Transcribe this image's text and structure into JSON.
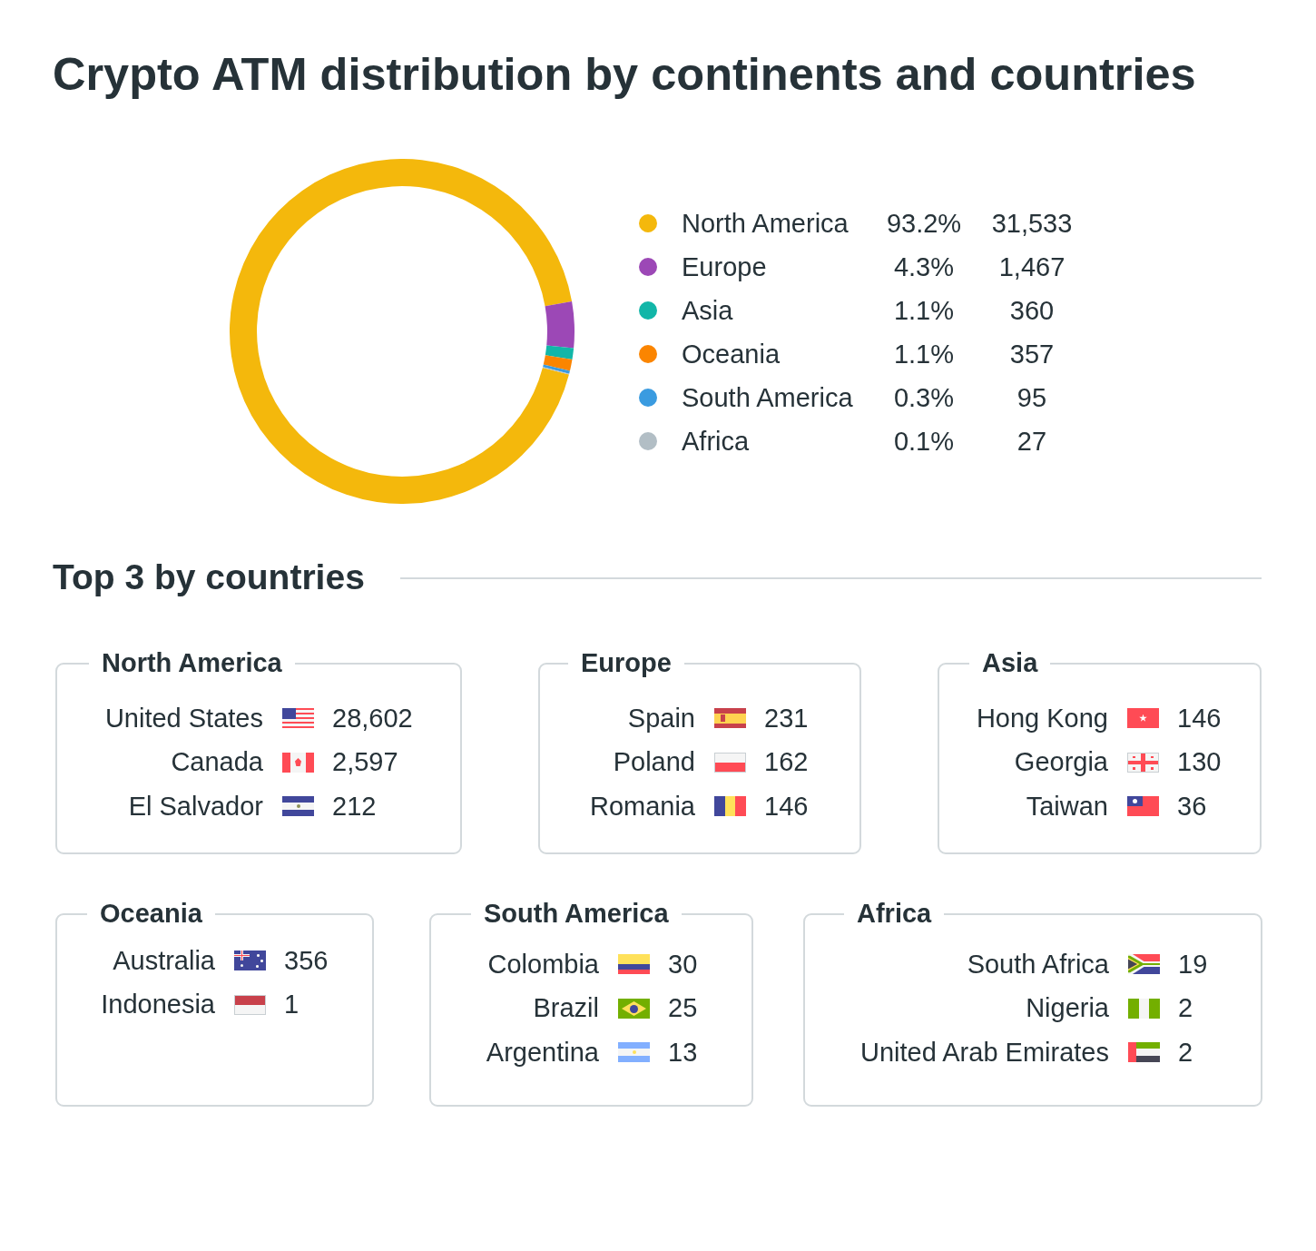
{
  "chart_data": [
    {
      "type": "donut",
      "title": "Crypto ATM distribution by continents and countries",
      "categories": [
        "North America",
        "Europe",
        "Asia",
        "Oceania",
        "South America",
        "Africa"
      ],
      "values": [
        31533,
        1467,
        360,
        357,
        95,
        27
      ],
      "colors": [
        "#f4b80c",
        "#9c48b6",
        "#12b6a8",
        "#fb8500",
        "#3a9be0",
        "#b2bec5"
      ],
      "value_labels": [
        "31,533",
        "1,467",
        "360",
        "357",
        "95",
        "27"
      ],
      "annotations": [
        "93.2%",
        "4.3%",
        "1.1%",
        "1.1%",
        "0.3%",
        "0.1%"
      ],
      "legend": "right"
    },
    {
      "type": "other",
      "title": "Top 3 by countries"
    },
    {
      "type": "other",
      "title": "North America",
      "categories": [
        "United States",
        "Canada",
        "El Salvador"
      ],
      "value_labels": [
        "28,602",
        "2,597",
        "212"
      ]
    },
    {
      "type": "other",
      "title": "Europe",
      "categories": [
        "Spain",
        "Poland",
        "Romania"
      ],
      "value_labels": [
        "231",
        "162",
        "146"
      ]
    },
    {
      "type": "other",
      "title": "Asia",
      "categories": [
        "Hong Kong",
        "Georgia",
        "Taiwan"
      ],
      "value_labels": [
        "146",
        "130",
        "36"
      ]
    },
    {
      "type": "other",
      "title": "Oceania",
      "categories": [
        "Australia",
        "Indonesia"
      ],
      "value_labels": [
        "356",
        "1"
      ]
    },
    {
      "type": "other",
      "title": "South America",
      "categories": [
        "Colombia",
        "Brazil",
        "Argentina"
      ],
      "value_labels": [
        "30",
        "25",
        "13"
      ]
    },
    {
      "type": "other",
      "title": "Africa",
      "categories": [
        "South Africa",
        "Nigeria",
        "United Arab Emirates"
      ],
      "value_labels": [
        "19",
        "2",
        "2"
      ]
    }
  ]
}
